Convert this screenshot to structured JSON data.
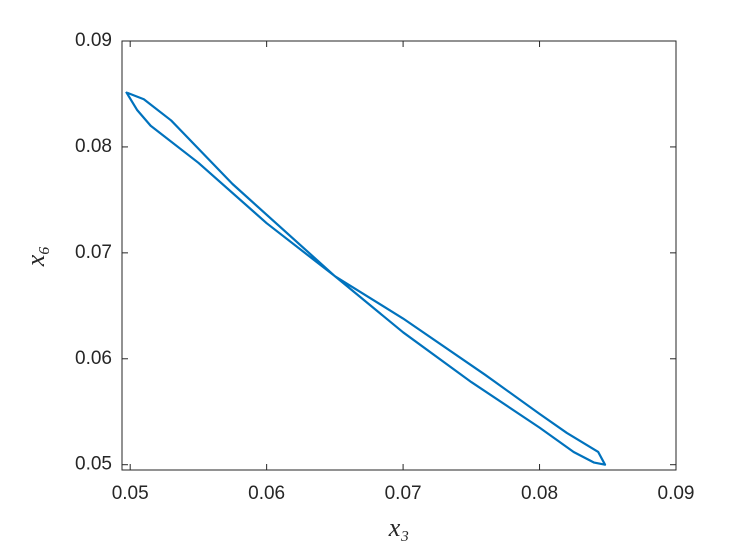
{
  "chart_data": {
    "type": "line",
    "xlabel": "x₃",
    "ylabel": "x₆",
    "x": [
      0.0497,
      0.0505,
      0.0515,
      0.055,
      0.06,
      0.065,
      0.07,
      0.075,
      0.08,
      0.0825,
      0.084,
      0.0848,
      0.0843,
      0.082,
      0.08,
      0.076,
      0.07,
      0.065,
      0.0575,
      0.053,
      0.051,
      0.0498
    ],
    "series": [
      {
        "color": "#0072bd",
        "values": [
          0.0852,
          0.0835,
          0.082,
          0.0785,
          0.0728,
          0.0678,
          0.0625,
          0.0578,
          0.0535,
          0.0512,
          0.0502,
          0.05,
          0.0512,
          0.053,
          0.0548,
          0.0585,
          0.0638,
          0.0678,
          0.0765,
          0.0825,
          0.0845,
          0.0851
        ]
      }
    ],
    "xlim": [
      0.0494,
      0.09
    ],
    "ylim": [
      0.0495,
      0.09
    ],
    "xticks": [
      0.05,
      0.06,
      0.07,
      0.08,
      0.09
    ],
    "yticks": [
      0.05,
      0.06,
      0.07,
      0.08,
      0.09
    ],
    "grid": false
  }
}
